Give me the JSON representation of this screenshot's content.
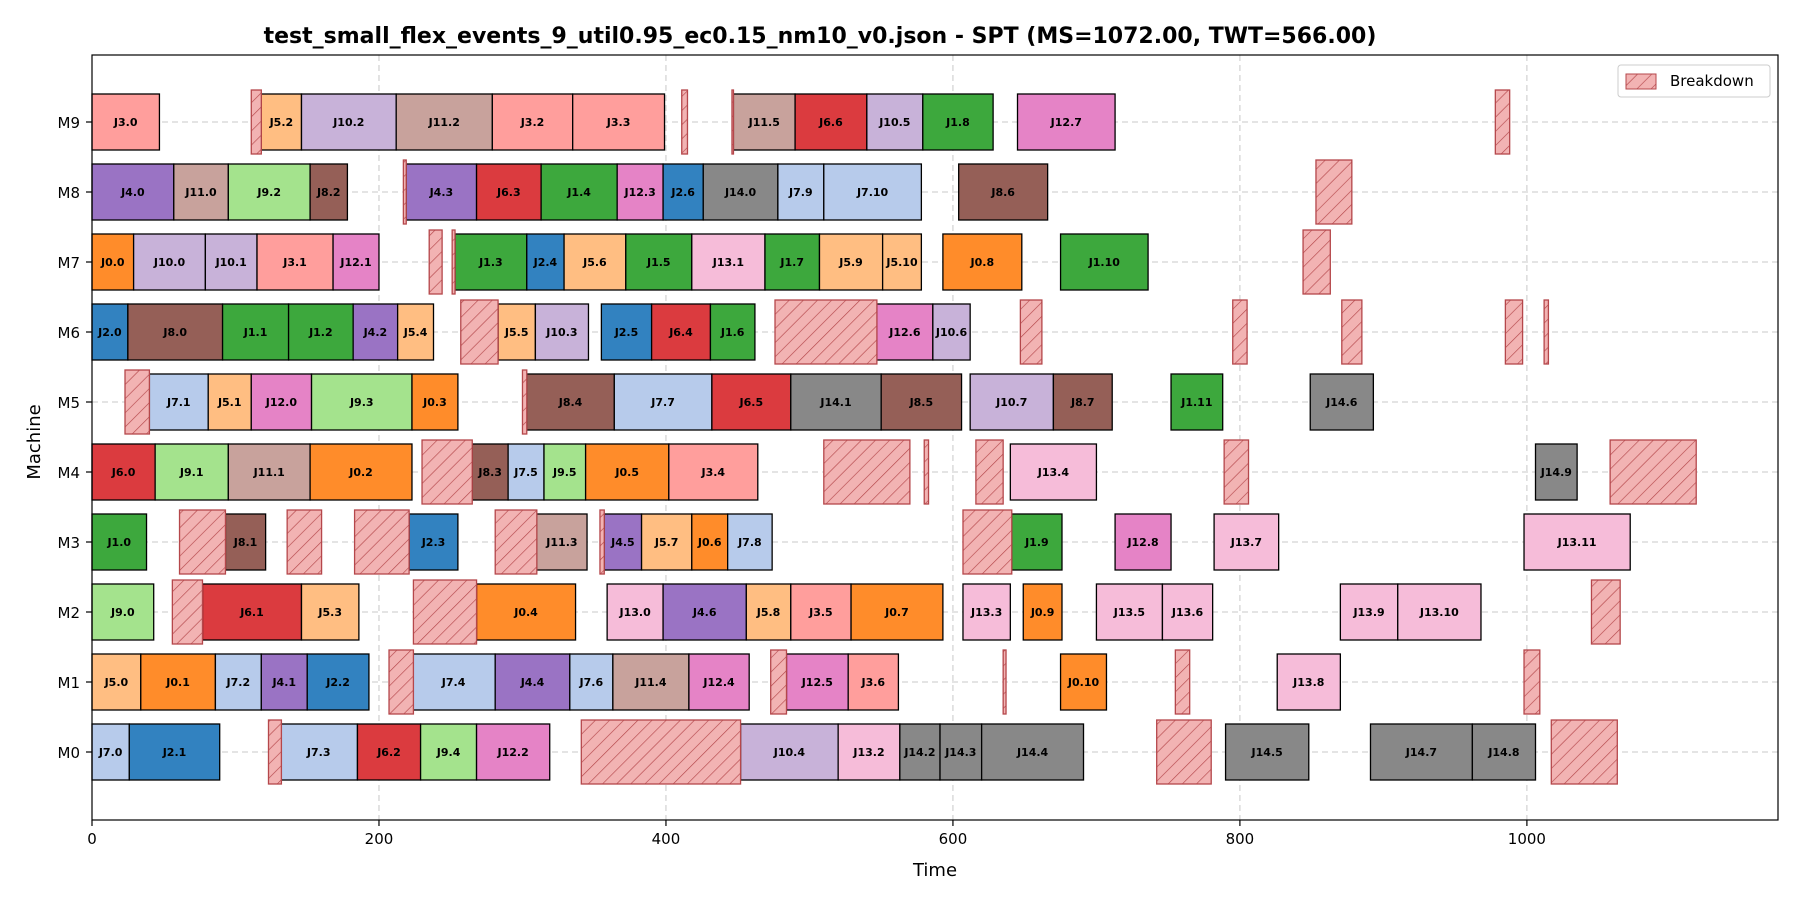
{
  "chart_data": {
    "type": "gantt",
    "title": "test_small_flex_events_9_util0.95_ec0.15_nm10_v0.json - SPT (MS=1072.00, TWT=566.00)",
    "xlabel": "Time",
    "ylabel": "Machine",
    "xlim": [
      0,
      1175
    ],
    "xticks": [
      0,
      200,
      400,
      600,
      800,
      1000
    ],
    "machines": [
      "M0",
      "M1",
      "M2",
      "M3",
      "M4",
      "M5",
      "M6",
      "M7",
      "M8",
      "M9"
    ],
    "grid": true,
    "legend": {
      "position": "top-right",
      "entries": [
        {
          "label": "Breakdown"
        }
      ]
    },
    "job_colors": {
      "J0": "#ff8c2a",
      "J1": "#3da83d",
      "J2": "#3282c0",
      "J3": "#ff9e9c",
      "J4": "#9a73c4",
      "J5": "#ffbe82",
      "J6": "#db3b3f",
      "J7": "#b7cbeb",
      "J8": "#955f57",
      "J9": "#a4e38d",
      "J10": "#c8b2d9",
      "J11": "#c8a29c",
      "J12": "#e583c6",
      "J13": "#f6bcd9",
      "J14": "#888888"
    },
    "breakdown_color": "#f2b3b3",
    "breakdown_edge": "#b5474b",
    "operations": [
      {
        "m": "M0",
        "start": 0,
        "end": 26,
        "label": "J7.0"
      },
      {
        "m": "M0",
        "start": 26,
        "end": 89,
        "label": "J2.1"
      },
      {
        "m": "M0",
        "start": 131,
        "end": 185,
        "label": "J7.3"
      },
      {
        "m": "M0",
        "start": 185,
        "end": 229,
        "label": "J6.2"
      },
      {
        "m": "M0",
        "start": 229,
        "end": 268,
        "label": "J9.4"
      },
      {
        "m": "M0",
        "start": 268,
        "end": 319,
        "label": "J12.2"
      },
      {
        "m": "M0",
        "start": 452,
        "end": 520,
        "label": "J10.4"
      },
      {
        "m": "M0",
        "start": 520,
        "end": 563,
        "label": "J13.2"
      },
      {
        "m": "M0",
        "start": 563,
        "end": 591,
        "label": "J14.2"
      },
      {
        "m": "M0",
        "start": 591,
        "end": 620,
        "label": "J14.3"
      },
      {
        "m": "M0",
        "start": 620,
        "end": 691,
        "label": "J14.4"
      },
      {
        "m": "M0",
        "start": 790,
        "end": 848,
        "label": "J14.5"
      },
      {
        "m": "M0",
        "start": 891,
        "end": 962,
        "label": "J14.7"
      },
      {
        "m": "M0",
        "start": 962,
        "end": 1006,
        "label": "J14.8"
      },
      {
        "m": "M1",
        "start": 0,
        "end": 34,
        "label": "J5.0"
      },
      {
        "m": "M1",
        "start": 34,
        "end": 86,
        "label": "J0.1"
      },
      {
        "m": "M1",
        "start": 86,
        "end": 118,
        "label": "J7.2"
      },
      {
        "m": "M1",
        "start": 118,
        "end": 150,
        "label": "J4.1"
      },
      {
        "m": "M1",
        "start": 150,
        "end": 193,
        "label": "J2.2"
      },
      {
        "m": "M1",
        "start": 223,
        "end": 281,
        "label": "J7.4"
      },
      {
        "m": "M1",
        "start": 281,
        "end": 333,
        "label": "J4.4"
      },
      {
        "m": "M1",
        "start": 333,
        "end": 363,
        "label": "J7.6"
      },
      {
        "m": "M1",
        "start": 363,
        "end": 416,
        "label": "J11.4"
      },
      {
        "m": "M1",
        "start": 416,
        "end": 458,
        "label": "J12.4"
      },
      {
        "m": "M1",
        "start": 484,
        "end": 527,
        "label": "J12.5"
      },
      {
        "m": "M1",
        "start": 527,
        "end": 562,
        "label": "J3.6"
      },
      {
        "m": "M1",
        "start": 675,
        "end": 707,
        "label": "J0.10"
      },
      {
        "m": "M1",
        "start": 826,
        "end": 870,
        "label": "J13.8"
      },
      {
        "m": "M2",
        "start": 0,
        "end": 43,
        "label": "J9.0"
      },
      {
        "m": "M2",
        "start": 77,
        "end": 146,
        "label": "J6.1"
      },
      {
        "m": "M2",
        "start": 146,
        "end": 186,
        "label": "J5.3"
      },
      {
        "m": "M2",
        "start": 268,
        "end": 337,
        "label": "J0.4"
      },
      {
        "m": "M2",
        "start": 359,
        "end": 398,
        "label": "J13.0"
      },
      {
        "m": "M2",
        "start": 398,
        "end": 456,
        "label": "J4.6"
      },
      {
        "m": "M2",
        "start": 456,
        "end": 487,
        "label": "J5.8"
      },
      {
        "m": "M2",
        "start": 487,
        "end": 529,
        "label": "J3.5"
      },
      {
        "m": "M2",
        "start": 529,
        "end": 593,
        "label": "J0.7"
      },
      {
        "m": "M2",
        "start": 607,
        "end": 640,
        "label": "J13.3"
      },
      {
        "m": "M2",
        "start": 649,
        "end": 676,
        "label": "J0.9"
      },
      {
        "m": "M2",
        "start": 700,
        "end": 746,
        "label": "J13.5"
      },
      {
        "m": "M2",
        "start": 746,
        "end": 781,
        "label": "J13.6"
      },
      {
        "m": "M2",
        "start": 870,
        "end": 910,
        "label": "J13.9"
      },
      {
        "m": "M2",
        "start": 910,
        "end": 968,
        "label": "J13.10"
      },
      {
        "m": "M3",
        "start": 0,
        "end": 38,
        "label": "J1.0"
      },
      {
        "m": "M3",
        "start": 93,
        "end": 121,
        "label": "J8.1"
      },
      {
        "m": "M3",
        "start": 221,
        "end": 255,
        "label": "J2.3"
      },
      {
        "m": "M3",
        "start": 310,
        "end": 345,
        "label": "J11.3"
      },
      {
        "m": "M3",
        "start": 357,
        "end": 383,
        "label": "J4.5"
      },
      {
        "m": "M3",
        "start": 383,
        "end": 418,
        "label": "J5.7"
      },
      {
        "m": "M3",
        "start": 418,
        "end": 443,
        "label": "J0.6"
      },
      {
        "m": "M3",
        "start": 443,
        "end": 474,
        "label": "J7.8"
      },
      {
        "m": "M3",
        "start": 641,
        "end": 676,
        "label": "J1.9"
      },
      {
        "m": "M3",
        "start": 713,
        "end": 752,
        "label": "J12.8"
      },
      {
        "m": "M3",
        "start": 782,
        "end": 827,
        "label": "J13.7"
      },
      {
        "m": "M3",
        "start": 998,
        "end": 1072,
        "label": "J13.11"
      },
      {
        "m": "M4",
        "start": 0,
        "end": 44,
        "label": "J6.0"
      },
      {
        "m": "M4",
        "start": 44,
        "end": 95,
        "label": "J9.1"
      },
      {
        "m": "M4",
        "start": 95,
        "end": 152,
        "label": "J11.1"
      },
      {
        "m": "M4",
        "start": 152,
        "end": 223,
        "label": "J0.2"
      },
      {
        "m": "M4",
        "start": 265,
        "end": 290,
        "label": "J8.3"
      },
      {
        "m": "M4",
        "start": 290,
        "end": 315,
        "label": "J7.5"
      },
      {
        "m": "M4",
        "start": 315,
        "end": 344,
        "label": "J9.5"
      },
      {
        "m": "M4",
        "start": 344,
        "end": 402,
        "label": "J0.5"
      },
      {
        "m": "M4",
        "start": 402,
        "end": 464,
        "label": "J3.4"
      },
      {
        "m": "M4",
        "start": 640,
        "end": 700,
        "label": "J13.4"
      },
      {
        "m": "M4",
        "start": 1006,
        "end": 1035,
        "label": "J14.9"
      },
      {
        "m": "M5",
        "start": 40,
        "end": 81,
        "label": "J7.1"
      },
      {
        "m": "M5",
        "start": 81,
        "end": 111,
        "label": "J5.1"
      },
      {
        "m": "M5",
        "start": 111,
        "end": 153,
        "label": "J12.0"
      },
      {
        "m": "M5",
        "start": 153,
        "end": 223,
        "label": "J9.3"
      },
      {
        "m": "M5",
        "start": 223,
        "end": 255,
        "label": "J0.3"
      },
      {
        "m": "M5",
        "start": 303,
        "end": 364,
        "label": "J8.4"
      },
      {
        "m": "M5",
        "start": 364,
        "end": 432,
        "label": "J7.7"
      },
      {
        "m": "M5",
        "start": 432,
        "end": 487,
        "label": "J6.5"
      },
      {
        "m": "M5",
        "start": 487,
        "end": 550,
        "label": "J14.1"
      },
      {
        "m": "M5",
        "start": 550,
        "end": 606,
        "label": "J8.5"
      },
      {
        "m": "M5",
        "start": 612,
        "end": 670,
        "label": "J10.7"
      },
      {
        "m": "M5",
        "start": 670,
        "end": 711,
        "label": "J8.7"
      },
      {
        "m": "M5",
        "start": 752,
        "end": 788,
        "label": "J1.11"
      },
      {
        "m": "M5",
        "start": 849,
        "end": 893,
        "label": "J14.6"
      },
      {
        "m": "M6",
        "start": 0,
        "end": 25,
        "label": "J2.0"
      },
      {
        "m": "M6",
        "start": 25,
        "end": 91,
        "label": "J8.0"
      },
      {
        "m": "M6",
        "start": 91,
        "end": 137,
        "label": "J1.1"
      },
      {
        "m": "M6",
        "start": 137,
        "end": 182,
        "label": "J1.2"
      },
      {
        "m": "M6",
        "start": 182,
        "end": 213,
        "label": "J4.2"
      },
      {
        "m": "M6",
        "start": 213,
        "end": 238,
        "label": "J5.4"
      },
      {
        "m": "M6",
        "start": 283,
        "end": 309,
        "label": "J5.5"
      },
      {
        "m": "M6",
        "start": 309,
        "end": 346,
        "label": "J10.3"
      },
      {
        "m": "M6",
        "start": 355,
        "end": 390,
        "label": "J2.5"
      },
      {
        "m": "M6",
        "start": 390,
        "end": 431,
        "label": "J6.4"
      },
      {
        "m": "M6",
        "start": 431,
        "end": 462,
        "label": "J1.6"
      },
      {
        "m": "M6",
        "start": 547,
        "end": 586,
        "label": "J12.6"
      },
      {
        "m": "M6",
        "start": 586,
        "end": 612,
        "label": "J10.6"
      },
      {
        "m": "M7",
        "start": 0,
        "end": 29,
        "label": "J0.0"
      },
      {
        "m": "M7",
        "start": 29,
        "end": 79,
        "label": "J10.0"
      },
      {
        "m": "M7",
        "start": 79,
        "end": 115,
        "label": "J10.1"
      },
      {
        "m": "M7",
        "start": 115,
        "end": 168,
        "label": "J3.1"
      },
      {
        "m": "M7",
        "start": 168,
        "end": 200,
        "label": "J12.1"
      },
      {
        "m": "M7",
        "start": 253,
        "end": 303,
        "label": "J1.3"
      },
      {
        "m": "M7",
        "start": 303,
        "end": 329,
        "label": "J2.4"
      },
      {
        "m": "M7",
        "start": 329,
        "end": 372,
        "label": "J5.6"
      },
      {
        "m": "M7",
        "start": 372,
        "end": 418,
        "label": "J1.5"
      },
      {
        "m": "M7",
        "start": 418,
        "end": 469,
        "label": "J13.1"
      },
      {
        "m": "M7",
        "start": 469,
        "end": 507,
        "label": "J1.7"
      },
      {
        "m": "M7",
        "start": 507,
        "end": 551,
        "label": "J5.9"
      },
      {
        "m": "M7",
        "start": 551,
        "end": 578,
        "label": "J5.10"
      },
      {
        "m": "M7",
        "start": 593,
        "end": 648,
        "label": "J0.8"
      },
      {
        "m": "M7",
        "start": 675,
        "end": 736,
        "label": "J1.10"
      },
      {
        "m": "M8",
        "start": 0,
        "end": 57,
        "label": "J4.0"
      },
      {
        "m": "M8",
        "start": 57,
        "end": 95,
        "label": "J11.0"
      },
      {
        "m": "M8",
        "start": 95,
        "end": 152,
        "label": "J9.2"
      },
      {
        "m": "M8",
        "start": 152,
        "end": 178,
        "label": "J8.2"
      },
      {
        "m": "M8",
        "start": 219,
        "end": 268,
        "label": "J4.3"
      },
      {
        "m": "M8",
        "start": 268,
        "end": 313,
        "label": "J6.3"
      },
      {
        "m": "M8",
        "start": 313,
        "end": 366,
        "label": "J1.4"
      },
      {
        "m": "M8",
        "start": 366,
        "end": 398,
        "label": "J12.3"
      },
      {
        "m": "M8",
        "start": 398,
        "end": 426,
        "label": "J2.6"
      },
      {
        "m": "M8",
        "start": 426,
        "end": 478,
        "label": "J14.0"
      },
      {
        "m": "M8",
        "start": 478,
        "end": 510,
        "label": "J7.9"
      },
      {
        "m": "M8",
        "start": 510,
        "end": 578,
        "label": "J7.10"
      },
      {
        "m": "M8",
        "start": 604,
        "end": 666,
        "label": "J8.6"
      },
      {
        "m": "M9",
        "start": 0,
        "end": 47,
        "label": "J3.0"
      },
      {
        "m": "M9",
        "start": 118,
        "end": 146,
        "label": "J5.2"
      },
      {
        "m": "M9",
        "start": 146,
        "end": 212,
        "label": "J10.2"
      },
      {
        "m": "M9",
        "start": 212,
        "end": 279,
        "label": "J11.2"
      },
      {
        "m": "M9",
        "start": 279,
        "end": 335,
        "label": "J3.2"
      },
      {
        "m": "M9",
        "start": 335,
        "end": 399,
        "label": "J3.3"
      },
      {
        "m": "M9",
        "start": 447,
        "end": 490,
        "label": "J11.5"
      },
      {
        "m": "M9",
        "start": 490,
        "end": 540,
        "label": "J6.6"
      },
      {
        "m": "M9",
        "start": 540,
        "end": 579,
        "label": "J10.5"
      },
      {
        "m": "M9",
        "start": 579,
        "end": 628,
        "label": "J1.8"
      },
      {
        "m": "M9",
        "start": 645,
        "end": 713,
        "label": "J12.7"
      }
    ],
    "breakdowns": [
      {
        "m": "M0",
        "start": 123,
        "end": 132
      },
      {
        "m": "M0",
        "start": 341,
        "end": 452
      },
      {
        "m": "M0",
        "start": 742,
        "end": 780
      },
      {
        "m": "M0",
        "start": 1017,
        "end": 1063
      },
      {
        "m": "M1",
        "start": 207,
        "end": 224
      },
      {
        "m": "M1",
        "start": 473,
        "end": 484
      },
      {
        "m": "M1",
        "start": 635,
        "end": 637
      },
      {
        "m": "M1",
        "start": 755,
        "end": 765
      },
      {
        "m": "M1",
        "start": 998,
        "end": 1009
      },
      {
        "m": "M2",
        "start": 56,
        "end": 77
      },
      {
        "m": "M2",
        "start": 224,
        "end": 268
      },
      {
        "m": "M2",
        "start": 1045,
        "end": 1065
      },
      {
        "m": "M3",
        "start": 61,
        "end": 93
      },
      {
        "m": "M3",
        "start": 136,
        "end": 160
      },
      {
        "m": "M3",
        "start": 183,
        "end": 221
      },
      {
        "m": "M3",
        "start": 281,
        "end": 310
      },
      {
        "m": "M3",
        "start": 354,
        "end": 357
      },
      {
        "m": "M3",
        "start": 607,
        "end": 641
      },
      {
        "m": "M4",
        "start": 230,
        "end": 265
      },
      {
        "m": "M4",
        "start": 510,
        "end": 570
      },
      {
        "m": "M4",
        "start": 580,
        "end": 583
      },
      {
        "m": "M4",
        "start": 616,
        "end": 635
      },
      {
        "m": "M4",
        "start": 789,
        "end": 806
      },
      {
        "m": "M4",
        "start": 1058,
        "end": 1118
      },
      {
        "m": "M5",
        "start": 23,
        "end": 40
      },
      {
        "m": "M5",
        "start": 300,
        "end": 303
      },
      {
        "m": "M6",
        "start": 257,
        "end": 283
      },
      {
        "m": "M6",
        "start": 476,
        "end": 547
      },
      {
        "m": "M6",
        "start": 647,
        "end": 662
      },
      {
        "m": "M6",
        "start": 795,
        "end": 805
      },
      {
        "m": "M6",
        "start": 871,
        "end": 885
      },
      {
        "m": "M6",
        "start": 985,
        "end": 997
      },
      {
        "m": "M6",
        "start": 1012,
        "end": 1015
      },
      {
        "m": "M7",
        "start": 235,
        "end": 244
      },
      {
        "m": "M7",
        "start": 251,
        "end": 253
      },
      {
        "m": "M7",
        "start": 844,
        "end": 863
      },
      {
        "m": "M8",
        "start": 217,
        "end": 219
      },
      {
        "m": "M8",
        "start": 853,
        "end": 878
      },
      {
        "m": "M9",
        "start": 111,
        "end": 118
      },
      {
        "m": "M9",
        "start": 411,
        "end": 415
      },
      {
        "m": "M9",
        "start": 446,
        "end": 447
      },
      {
        "m": "M9",
        "start": 978,
        "end": 988
      }
    ]
  }
}
